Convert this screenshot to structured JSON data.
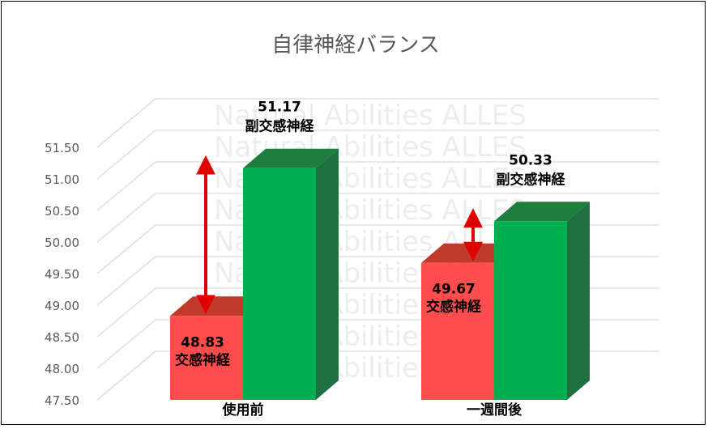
{
  "chart_data": {
    "type": "bar",
    "title": "自律神経バランス",
    "watermark": "Natural Abilities ALLES",
    "categories": [
      "使用前",
      "一週間後"
    ],
    "series": [
      {
        "name": "交感神経",
        "color": "#ff4d4d",
        "values": [
          48.83,
          49.67
        ]
      },
      {
        "name": "副交感神経",
        "color": "#00b050",
        "values": [
          51.17,
          50.33
        ]
      }
    ],
    "data_labels": [
      [
        "48.83",
        "51.17"
      ],
      [
        "49.67",
        "50.33"
      ]
    ],
    "ylim": [
      47.5,
      51.5
    ],
    "yticks": [
      "47.50",
      "48.00",
      "48.50",
      "49.00",
      "49.50",
      "50.00",
      "50.50",
      "51.00",
      "51.50"
    ],
    "grid": true,
    "arrow_color": "#e00000"
  }
}
